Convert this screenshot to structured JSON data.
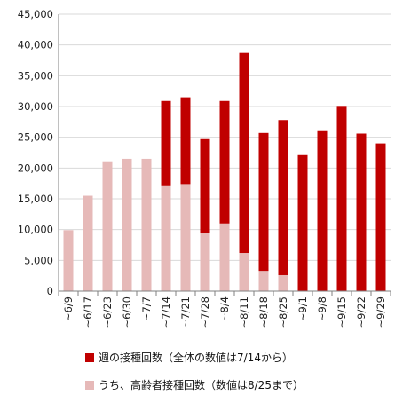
{
  "chart_data": {
    "type": "bar",
    "categories": [
      "~6/9",
      "~6/17",
      "~6/23",
      "~6/30",
      "~7/7",
      "~7/14",
      "~7/21",
      "~7/28",
      "~8/4",
      "~8/11",
      "~8/18",
      "~8/25",
      "~9/1",
      "~9/8",
      "~9/15",
      "~9/22",
      "~9/29"
    ],
    "series": [
      {
        "name": "週の接種回数（全体の数値は7/14から）",
        "values": [
          null,
          null,
          null,
          null,
          null,
          30900,
          31500,
          24700,
          30900,
          38700,
          25700,
          27800,
          22100,
          26000,
          30100,
          25600,
          24000
        ]
      },
      {
        "name": "うち、高齢者接種回数（数値は8/25まで）",
        "values": [
          9900,
          15500,
          21100,
          21500,
          21500,
          17200,
          17400,
          9500,
          11000,
          6200,
          3300,
          2600,
          null,
          null,
          null,
          null,
          null
        ]
      }
    ],
    "ylim": [
      0,
      45000
    ],
    "yticks": [
      0,
      5000,
      10000,
      15000,
      20000,
      25000,
      30000,
      35000,
      40000,
      45000
    ],
    "yticklabels": [
      "0",
      "5,000",
      "10,000",
      "15,000",
      "20,000",
      "25,000",
      "30,000",
      "35,000",
      "40,000",
      "45,000"
    ],
    "grid": true,
    "legend_position": "bottom",
    "colors": {
      "total": "#c00000",
      "elderly": "#e6b9b8",
      "grid": "#d9d9d9",
      "axis": "#808080"
    }
  }
}
